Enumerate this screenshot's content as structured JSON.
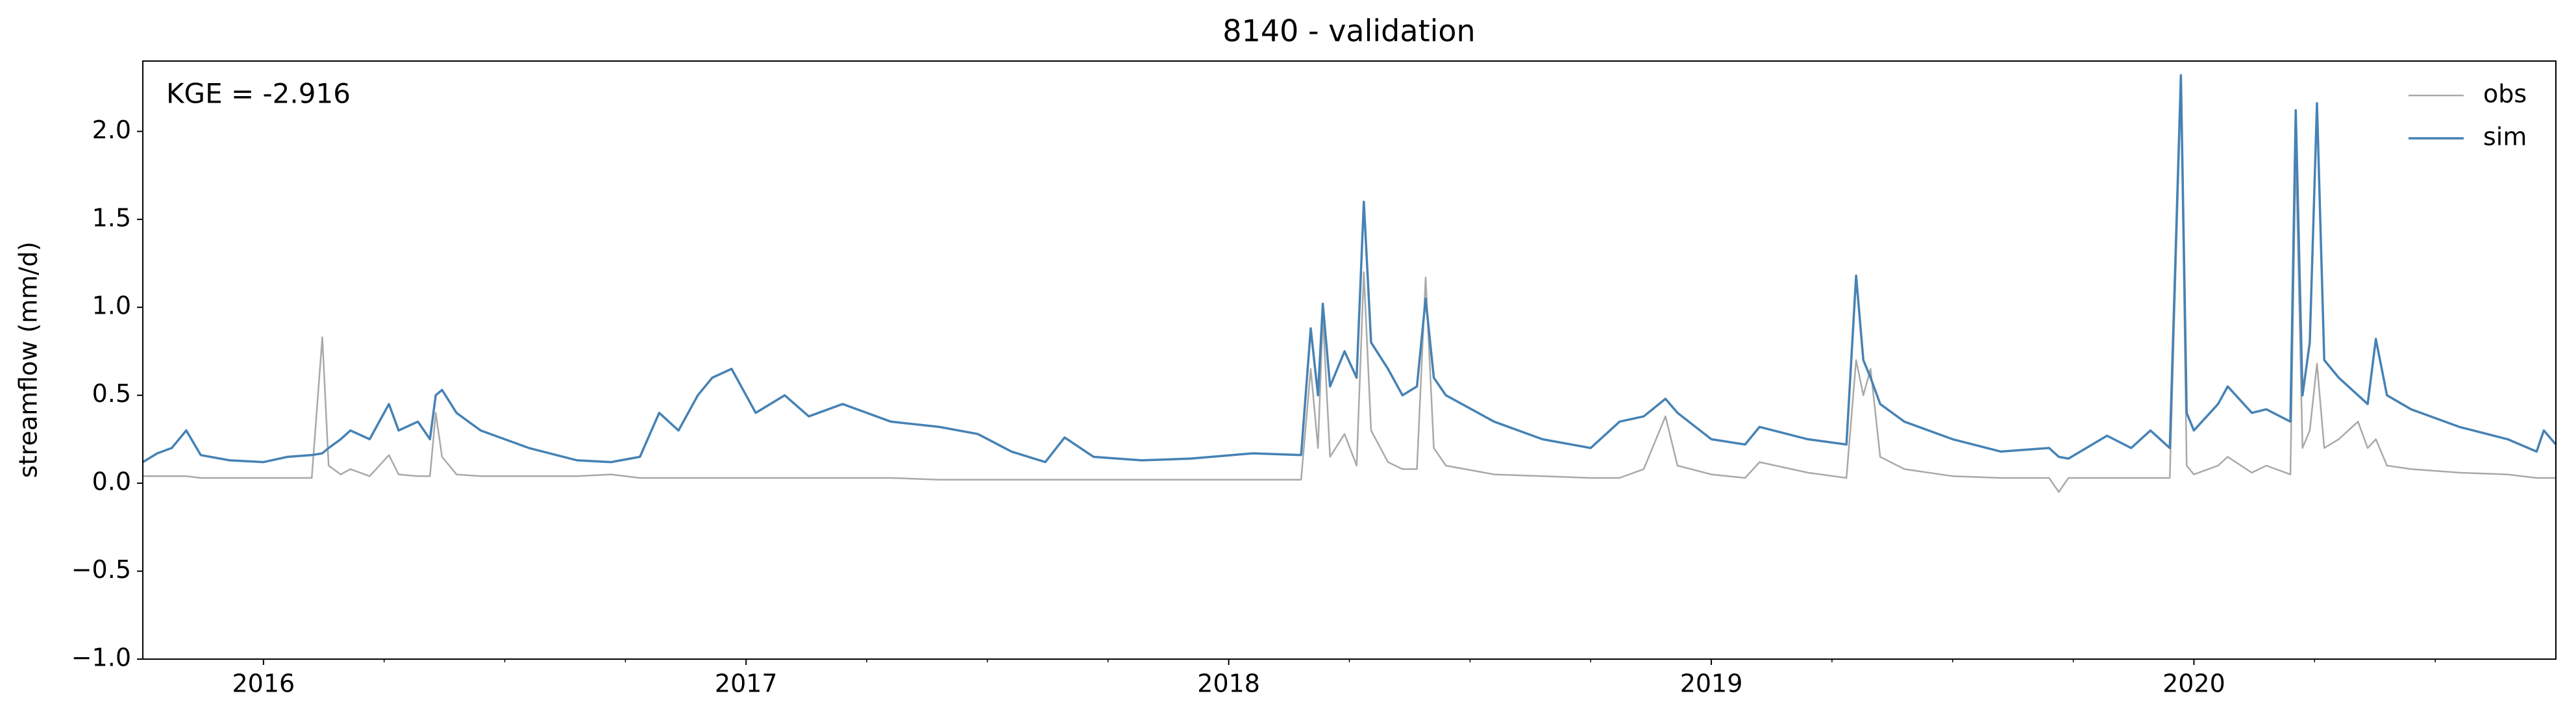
{
  "chart_data": {
    "type": "line",
    "title": "8140 - validation",
    "y_label": "streamflow (mm/d)",
    "annotation": "KGE = -2.916",
    "legend": "upper right",
    "xlim": [
      2015.75,
      2020.75
    ],
    "xticks": [
      2016,
      2017,
      2018,
      2019,
      2020
    ],
    "xminorticks": [
      2016.25,
      2016.5,
      2016.75,
      2017.25,
      2017.5,
      2017.75,
      2018.25,
      2018.5,
      2018.75,
      2019.25,
      2019.5,
      2019.75,
      2020.25,
      2020.5
    ],
    "ylim": [
      -1.0,
      2.4
    ],
    "yticks": [
      {
        "value": -1.0,
        "label": "−1.0"
      },
      {
        "value": -0.5,
        "label": "−0.5"
      },
      {
        "value": 0.0,
        "label": "0.0"
      },
      {
        "value": 0.5,
        "label": "0.5"
      },
      {
        "value": 1.0,
        "label": "1.0"
      },
      {
        "value": 1.5,
        "label": "1.5"
      },
      {
        "value": 2.0,
        "label": "2.0"
      }
    ],
    "x": [
      2015.75,
      2015.78,
      2015.81,
      2015.84,
      2015.87,
      2015.93,
      2016.0,
      2016.05,
      2016.1,
      2016.122,
      2016.135,
      2016.16,
      2016.18,
      2016.22,
      2016.26,
      2016.28,
      2016.32,
      2016.345,
      2016.357,
      2016.37,
      2016.4,
      2016.45,
      2016.55,
      2016.65,
      2016.72,
      2016.78,
      2016.82,
      2016.86,
      2016.9,
      2016.93,
      2016.97,
      2017.02,
      2017.08,
      2017.13,
      2017.2,
      2017.3,
      2017.4,
      2017.48,
      2017.55,
      2017.62,
      2017.66,
      2017.72,
      2017.82,
      2017.92,
      2018.05,
      2018.15,
      2018.17,
      2018.185,
      2018.195,
      2018.21,
      2018.24,
      2018.265,
      2018.28,
      2018.295,
      2018.33,
      2018.36,
      2018.39,
      2018.408,
      2018.425,
      2018.45,
      2018.55,
      2018.65,
      2018.75,
      2018.81,
      2018.86,
      2018.905,
      2018.93,
      2019.0,
      2019.07,
      2019.1,
      2019.2,
      2019.28,
      2019.3,
      2019.315,
      2019.33,
      2019.35,
      2019.4,
      2019.5,
      2019.6,
      2019.7,
      2019.72,
      2019.74,
      2019.82,
      2019.87,
      2019.91,
      2019.95,
      2019.973,
      2019.985,
      2020.0,
      2020.05,
      2020.07,
      2020.12,
      2020.15,
      2020.2,
      2020.211,
      2020.225,
      2020.24,
      2020.255,
      2020.27,
      2020.3,
      2020.34,
      2020.36,
      2020.377,
      2020.4,
      2020.45,
      2020.55,
      2020.65,
      2020.71,
      2020.725,
      2020.75
    ],
    "series": [
      {
        "name": "obs",
        "color": "#a9a9a9",
        "values": [
          0.04,
          0.04,
          0.04,
          0.04,
          0.03,
          0.03,
          0.03,
          0.03,
          0.03,
          0.83,
          0.1,
          0.05,
          0.08,
          0.04,
          0.16,
          0.05,
          0.04,
          0.04,
          0.4,
          0.15,
          0.05,
          0.04,
          0.04,
          0.04,
          0.05,
          0.03,
          0.03,
          0.03,
          0.03,
          0.03,
          0.03,
          0.03,
          0.03,
          0.03,
          0.03,
          0.03,
          0.02,
          0.02,
          0.02,
          0.02,
          0.02,
          0.02,
          0.02,
          0.02,
          0.02,
          0.02,
          0.65,
          0.2,
          0.95,
          0.15,
          0.28,
          0.1,
          1.2,
          0.3,
          0.12,
          0.08,
          0.08,
          1.17,
          0.2,
          0.1,
          0.05,
          0.04,
          0.03,
          0.03,
          0.08,
          0.38,
          0.1,
          0.05,
          0.03,
          0.12,
          0.06,
          0.03,
          0.7,
          0.5,
          0.65,
          0.15,
          0.08,
          0.04,
          0.03,
          0.03,
          -0.05,
          0.03,
          0.03,
          0.03,
          0.03,
          0.03,
          2.25,
          0.1,
          0.05,
          0.1,
          0.15,
          0.06,
          0.1,
          0.05,
          1.9,
          0.2,
          0.3,
          0.68,
          0.2,
          0.25,
          0.35,
          0.2,
          0.25,
          0.1,
          0.08,
          0.06,
          0.05,
          0.03,
          0.03,
          0.03
        ]
      },
      {
        "name": "sim",
        "color": "#4682b4",
        "values": [
          0.12,
          0.17,
          0.2,
          0.3,
          0.16,
          0.13,
          0.12,
          0.15,
          0.16,
          0.17,
          0.2,
          0.25,
          0.3,
          0.25,
          0.45,
          0.3,
          0.35,
          0.25,
          0.5,
          0.53,
          0.4,
          0.3,
          0.2,
          0.13,
          0.12,
          0.15,
          0.4,
          0.3,
          0.5,
          0.6,
          0.65,
          0.4,
          0.5,
          0.38,
          0.45,
          0.35,
          0.32,
          0.28,
          0.18,
          0.12,
          0.26,
          0.15,
          0.13,
          0.14,
          0.17,
          0.16,
          0.88,
          0.5,
          1.02,
          0.55,
          0.75,
          0.6,
          1.6,
          0.8,
          0.65,
          0.5,
          0.55,
          1.05,
          0.6,
          0.5,
          0.35,
          0.25,
          0.2,
          0.35,
          0.38,
          0.48,
          0.4,
          0.25,
          0.22,
          0.32,
          0.25,
          0.22,
          1.18,
          0.7,
          0.6,
          0.45,
          0.35,
          0.25,
          0.18,
          0.2,
          0.15,
          0.14,
          0.27,
          0.2,
          0.3,
          0.2,
          2.32,
          0.4,
          0.3,
          0.45,
          0.55,
          0.4,
          0.42,
          0.35,
          2.12,
          0.5,
          0.8,
          2.16,
          0.7,
          0.6,
          0.5,
          0.45,
          0.82,
          0.5,
          0.42,
          0.32,
          0.25,
          0.18,
          0.3,
          0.22
        ]
      }
    ]
  }
}
